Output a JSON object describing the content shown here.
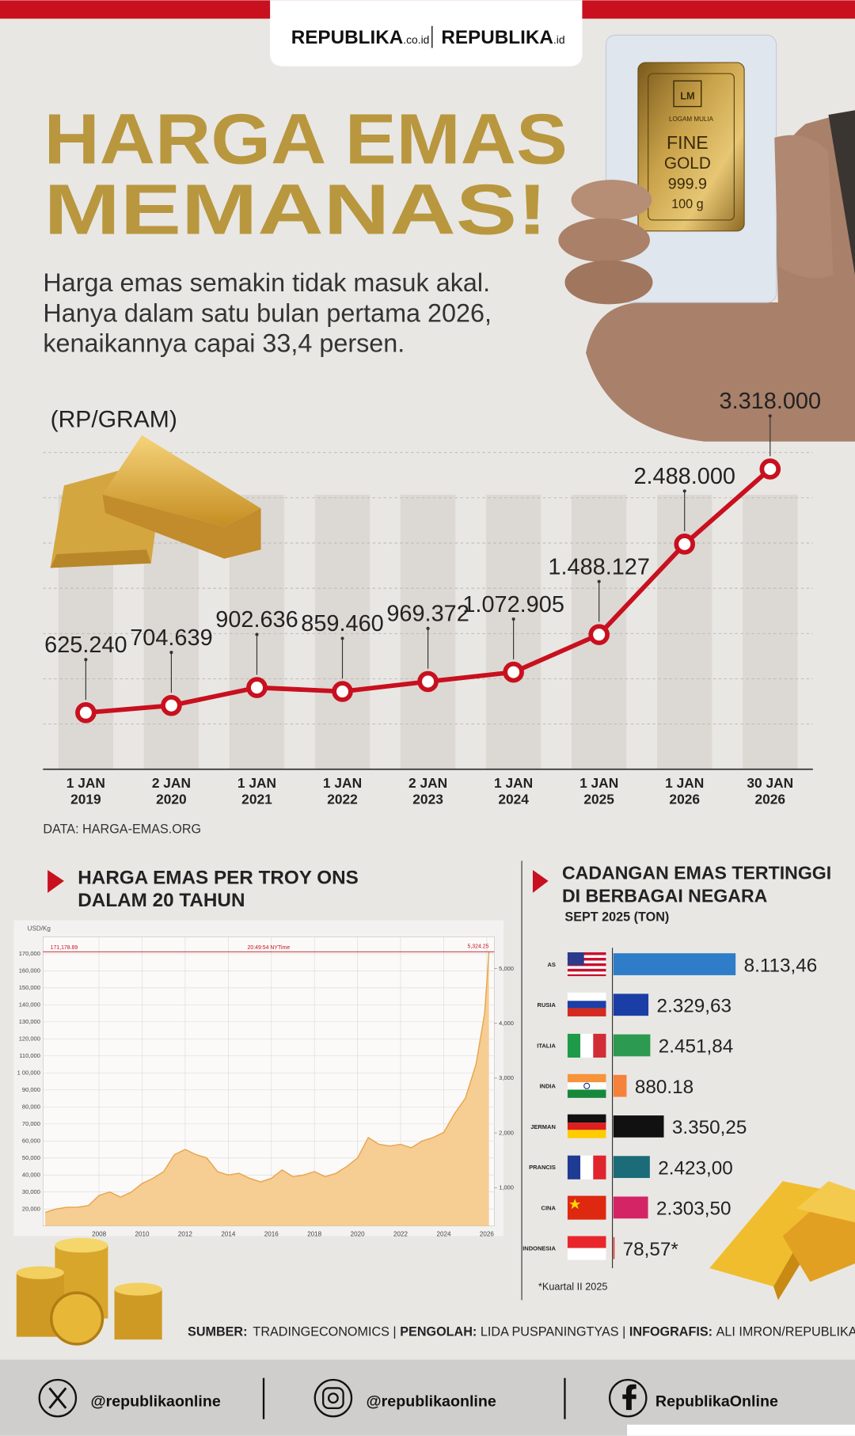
{
  "header": {
    "logo_1": "REPUBLIKA",
    "logo_1_suffix": ".co.id",
    "logo_2": "REPUBLIKA",
    "logo_2_suffix": ".id"
  },
  "title": [
    "HARGA EMAS",
    "MEMANAS!"
  ],
  "intro": [
    "Harga emas semakin tidak masuk akal.",
    "Hanya dalam satu bulan pertama 2026,",
    "kenaikannya capai 33,4 persen."
  ],
  "photo": {
    "brand": "LM",
    "maker": "LOGAM MULIA",
    "lines": [
      "FINE",
      "GOLD",
      "999.9",
      "100 g"
    ]
  },
  "chart_data": [
    {
      "type": "line",
      "ylabel": "(RP/GRAM)",
      "categories": [
        "1 JAN 2019",
        "2 JAN 2020",
        "1 JAN 2021",
        "1 JAN 2022",
        "2 JAN 2023",
        "1 JAN 2024",
        "1 JAN 2025",
        "1 JAN 2026",
        "30 JAN 2026"
      ],
      "values": [
        625240,
        704639,
        902636,
        859460,
        969372,
        1072905,
        1488127,
        2488000,
        3318000
      ],
      "value_labels": [
        "625.240",
        "704.639",
        "902.636",
        "859.460",
        "969.372",
        "1.072.905",
        "1.488.127",
        "2.488.000",
        "3.318.000"
      ],
      "color": "#c8101f",
      "ylim": [
        0,
        3500000
      ],
      "yticks": [
        0,
        500000,
        1000000,
        1500000,
        2000000,
        2500000,
        3000000,
        3500000
      ],
      "grid": true,
      "source": "DATA: HARGA-EMAS.ORG"
    },
    {
      "type": "area",
      "title": [
        "HARGA EMAS PER TROY ONS",
        "DALAM 20 TAHUN"
      ],
      "ylabel": "USD/Kg",
      "x": [
        2005.5,
        2006,
        2006.5,
        2007,
        2007.5,
        2008,
        2008.5,
        2009,
        2009.5,
        2010,
        2010.5,
        2011,
        2011.5,
        2012,
        2012.5,
        2013,
        2013.5,
        2014,
        2014.5,
        2015,
        2015.5,
        2016,
        2016.5,
        2017,
        2017.5,
        2018,
        2018.5,
        2019,
        2019.5,
        2020,
        2020.5,
        2021,
        2021.5,
        2022,
        2022.5,
        2023,
        2023.5,
        2024,
        2024.5,
        2025,
        2025.5,
        2025.9,
        2026.1
      ],
      "values": [
        18000,
        20000,
        21000,
        21000,
        22000,
        28000,
        30000,
        27000,
        30000,
        35000,
        38000,
        42000,
        52000,
        55000,
        52000,
        50000,
        42000,
        40000,
        41000,
        38000,
        36000,
        38000,
        43000,
        39000,
        40000,
        42000,
        39000,
        41000,
        45000,
        50000,
        62000,
        58000,
        57000,
        58000,
        56000,
        60000,
        62000,
        65000,
        76000,
        85000,
        105000,
        135000,
        171000
      ],
      "color": "#e8a44a",
      "fill": "#f6cd93",
      "xlim": [
        2005.4,
        2026.35
      ],
      "xticks": [
        2008,
        2010,
        2012,
        2014,
        2016,
        2018,
        2020,
        2022,
        2024,
        2026
      ],
      "ylim": [
        10000,
        180000
      ],
      "yticks": [
        {
          "value": 20000,
          "label": "20,000"
        },
        {
          "value": 30000,
          "label": "30,000"
        },
        {
          "value": 40000,
          "label": "40,000"
        },
        {
          "value": 50000,
          "label": "50,000"
        },
        {
          "value": 60000,
          "label": "60,000"
        },
        {
          "value": 70000,
          "label": "70,000"
        },
        {
          "value": 80000,
          "label": "80,000"
        },
        {
          "value": 90000,
          "label": "90,000"
        },
        {
          "value": 100000,
          "label": "1 00,000"
        },
        {
          "value": 110000,
          "label": "110,000"
        },
        {
          "value": 120000,
          "label": "120,000"
        },
        {
          "value": 130000,
          "label": "130,000"
        },
        {
          "value": 140000,
          "label": "140,000"
        },
        {
          "value": 150000,
          "label": "150,000"
        },
        {
          "value": 160000,
          "label": "160,000"
        },
        {
          "value": 170000,
          "label": "170,000"
        }
      ],
      "y2lim": [
        300,
        5580
      ],
      "y2ticks": [
        {
          "value": 1000,
          "label": "1,000"
        },
        {
          "value": 2000,
          "label": "2,000"
        },
        {
          "value": 3000,
          "label": "3,000"
        },
        {
          "value": 4000,
          "label": "4,000"
        },
        {
          "value": 5000,
          "label": "5,000"
        }
      ],
      "hline": {
        "value": 171178.89,
        "label": "171,178.89"
      },
      "hline_y2": {
        "value": 5324.25,
        "label": "5,324.25"
      },
      "annotation": "20:49:54 NYTime",
      "grid": true
    },
    {
      "type": "hbar",
      "title": [
        "CADANGAN EMAS TERTINGGI",
        "DI BERBAGAI NEGARA"
      ],
      "subtitle": "SEPT 2025 (TON)",
      "categories": [
        "AS",
        "RUSIA",
        "ITALIA",
        "INDIA",
        "JERMAN",
        "PRANCIS",
        "CINA",
        "INDONESIA"
      ],
      "values": [
        8113.46,
        2329.63,
        2451.84,
        880.18,
        3350.25,
        2423.0,
        2303.5,
        78.57
      ],
      "value_labels": [
        "8.113,46",
        "2.329,63",
        "2.451,84",
        "880.18",
        "3.350,25",
        "2.423,00",
        "2.303,50",
        "78,57*"
      ],
      "colors": [
        "#2f7dc8",
        "#1b3ea6",
        "#2c9a50",
        "#f5813a",
        "#111111",
        "#1b6b79",
        "#d42466",
        "#e8262b"
      ],
      "xlim": [
        0,
        8200
      ],
      "note": "*Kuartal II 2025"
    }
  ],
  "credits": [
    "SUMBER:",
    "TRADINGECONOMICS |",
    "PENGOLAH:",
    "LIDA PUSPANINGTYAS |",
    "INFOGRAFIS:",
    "ALI IMRON/REPUBLIKA"
  ],
  "footer": [
    "@republikaonline",
    "@republikaonline",
    "RepublikaOnline"
  ]
}
